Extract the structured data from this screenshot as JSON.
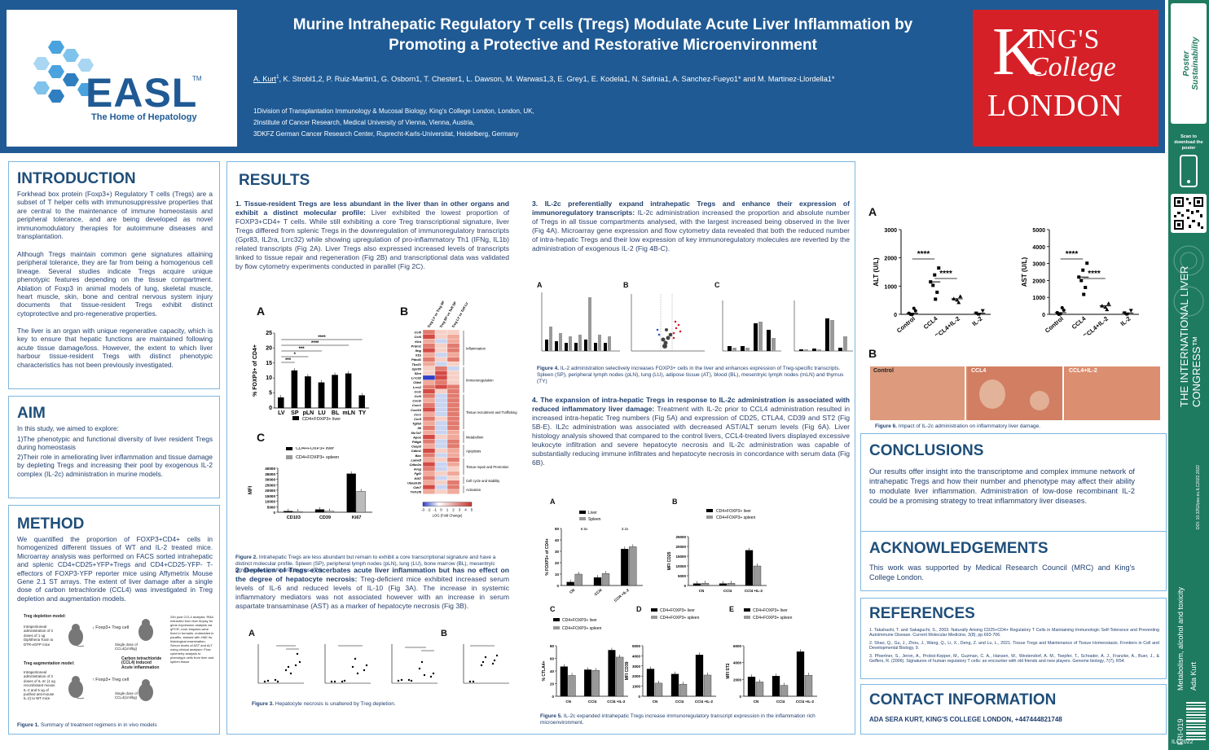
{
  "header": {
    "title_line1": "Murine Intrahepatic Regulatory T cells (Tregs) Modulate Acute Liver Inflammation by",
    "title_line2": "Promoting a Protective and Restorative Microenvironment",
    "authors_first": "A. Kurt",
    "authors_first_sup": "1",
    "authors_rest": ", K. Strobl1,2, P. Ruiz-Martin1, G. Osborn1, T. Chester1, L. Dawson, M. Warwas1,3, E. Grey1, E. Kodela1, N. Safinia1, A. Sanchez-Fueyo1* and M. Martinez-Llordella1*",
    "affiliations": [
      "1Division of Transplantation Immunology & Mucosal Biology, King's College London, London, UK,",
      "2Institute of Cancer Research, Medical University of Vienna, Vienna, Austria,",
      "3DKFZ German Cancer Research Center, Ruprecht-Karls-Universitat, Heidelberg, Germany"
    ],
    "easl_logo": "EASL",
    "easl_tm": "TM",
    "easl_tagline": "The Home of Hepatology",
    "kcl_k": "K",
    "kcl_ings": "ING'S",
    "kcl_college": "College",
    "kcl_london": "LONDON"
  },
  "sidebar": {
    "scan_text": "Scan to download the poster",
    "congress": "THE INTERNATIONAL LIVER CONGRESS™",
    "doi": "DOI: 10.3252/pso.eu.ILC2022.2022",
    "topic": "Metabolism, alcohol and toxicity",
    "author": "Ada Kurt",
    "code": "FRI-019",
    "year": "ILC2022"
  },
  "intro": {
    "heading": "INTRODUCTION",
    "p1": "Forkhead box protein (Foxp3+) Regulatory T cells (Tregs) are a subset of T helper cells with immunosuppressive properties that are central to the maintenance of immune homeostasis and peripheral tolerance, and are being developed as novel immunomodulatory therapies for autoimmune diseases and transplantation.",
    "p2": "Although Tregs maintain common gene signatures attaining peripheral tolerance, they are far from being a homogenous cell lineage. Several studies indicate Tregs acquire unique phenotypic features depending on the tissue compartment. Ablation of Foxp3 in animal models of lung, skeletal muscle, heart muscle, skin, bone and central nervous system injury documents that tissue-resident Tregs exhibit distinct cytoprotective and pro-regenerative properties.",
    "p3": "The liver is an organ with unique regenerative capacity, which is key to ensure that hepatic functions are maintained following acute tissue damage/loss. However, the extent to which liver harbour tissue-resident Tregs with distinct phenotypic characteristics has not been previously investigated."
  },
  "aim": {
    "heading": "AIM",
    "p1": "In this study, we aimed to explore:",
    "p2": "1)The phenotypic and functional diversity of liver resident Tregs during homeostasis",
    "p3": "2)Their role in ameliorating liver inflammation and tissue damage by depleting Tregs and increasing their pool by exogenous IL-2 complex (IL-2c) administration in murine models."
  },
  "method": {
    "heading": "METHOD",
    "p1": "We quantified the proportion of FOXP3+CD4+ cells in homogenized different tissues of WT and IL-2 treated mice. Microarray analysis was performed on FACS sorted intrahepatic and splenic CD4+CD25+YFP+Tregs and CD4+CD25-YFP- T-effectors of FOXP3-YFP reporter mice using Affymetrix Mouse Gene 2.1 ST arrays. The extent of liver damage after a single dose of carbon tetrachloride (CCL4) was investigated in Treg depletion and augmentation models.",
    "fig_depletion": "Treg depletion model:",
    "fig_augment": "Treg augmentation model:",
    "fig_dep_treat": "Intraperitoneal administration of 3 doses of 1 ug Diphtheria Toxin to DTR-eGFP mice",
    "fig_aug_treat": "Intraperitoneal administration of 3 doses of IL-2c (1 ug recombinant mouse IL-2 and 5 ug of purified anti-mouse IL-2) to WT mice",
    "fig_down": "↓ Foxp3+ Treg cell",
    "fig_up": "↑ Foxp3+ Treg cell",
    "fig_single": "Single dose of CCL4(1ml/kg)",
    "fig_ccl4": "Carbon tetrachloride (CCL4) induced Acute inflammation",
    "fig_24h": "24h post CCL4 analysis: RNA extracted from liver biopsy for gene expression analysis via qPCR; Liver biopsies were fixed in formalin, embedded in paraffin, stained with H&E for histological examination; Serum levels of AST and ALT using clinical analyser; Flow cytometry analysis to phenotype cells from liver and spleen tissue",
    "caption_bold": "Figure 1.",
    "caption": " Summary of treatment regimens in in vivo models"
  },
  "results": {
    "heading": "RESULTS",
    "s1_bold": "1. Tissue-resident Tregs are less abundant in the liver than in other organs and exhibit a distinct molecular profile:",
    "s1_text": " Liver exhibited the lowest proportion of FOXP3+CD4+ T cells. While still exhibiting a core Treg transcriptional signature, liver Tregs differed from splenic Tregs in the downregulation of immunoregulatory transcripts (Gpr83, IL2ra, Lrrc32) while showing upregulation of pro-inflammatory Th1 (IFNg, IL1b) related transcripts (Fig 2A). Liver Tregs also expressed increased levels of transcripts linked to tissue repair and regeneration (Fig 2B) and transcriptional data was validated by flow cytometry experiments conducted in parallel (Fig 2C).",
    "fig2_caption_bold": "Figure 2.",
    "fig2_caption": " Intrahepatic Tregs are less abundant but remain to exhibit a core transcriptional signature and have a distinct molecular profile. Spleen (SP), peripheral lymph nodes (pLN), lung (LU), bone marrow (BL), mesentryic lymph nodes (mLN) and thymus (TY)",
    "s2_bold": "2. Depletion of Tregs exacerbates acute liver inflammation but has no effect on the degree of hepatocyte necrosis:",
    "s2_text": " Treg-deficient mice exhibited increased serum levels of IL-6 and reduced levels of IL-10 (Fig 3A). The increase in systemic inflammatory mediators was not associated however with an increase in serum aspartate transaminase (AST) as a marker of hepatocyte necrosis (Fig 3B).",
    "fig3_caption_bold": "Figure 3.",
    "fig3_caption": " Hepatocyte necrosis is unaltered by Treg depletion.",
    "s3_bold": "3. IL-2c preferentially expand intrahepatic Tregs and enhance their expression of immunoregulatory transcripts:",
    "s3_text": " IL-2c administration increased the proportion and absolute number of Tregs in all tissue compartments analysed, with the largest increased being observed in the liver (Fig 4A). Microarray gene expression and flow cytometry data revealed that both the reduced number of intra-hepatic Tregs and their low expression of key immunoregulatory molecules are reverted by the administration of exogenous IL-2 (Fig 4B-C).",
    "fig4_caption_bold": "Figure 4.",
    "fig4_caption": " IL-2 administration selectively increases FOXP3+ cells in the liver and enhances expression of Treg-specific transcripts. Spleen (SP), peripheral lymph nodes (pLN), lung (LU), adipose tissue (AT), blood (BL), mesentryic lymph nodes (mLN) and thymus (TY)",
    "s4_bold": "4. The expansion of intra-hepatic Tregs in response to IL-2c administration is associated with reduced inflammatory liver damage:",
    "s4_text": " Treatment with IL-2c prior to CCL4 administration resulted in increased intra-hepatic Treg numbers (Fig 5A) and expression of CD25, CTLA4, CD39 and ST2 (Fig 5B-E). IL2c administration was associated with decreased AST/ALT serum levels (Fig 6A). Liver histology analysis showed that compared to the control livers, CCL4-treated livers displayed excessive leukocyte infiltration and severe hepatocyte necrosis and IL-2c administration was capable of substantially reducing immune infiltrates and hepatocyte necrosis in concordance with serum data (Fig 6B).",
    "fig5_caption_bold": "Figure 5.",
    "fig5_caption": " IL-2c expanded intrahepatic Tregs increase immunoregulatory transcript expression in the inflammation rich microenvironment.",
    "fig6_caption_bold": "Figure 6.",
    "fig6_caption": " Impact of IL-2c administration on inflammatory liver damage."
  },
  "conclusions": {
    "heading": "CONCLUSIONS",
    "text": "Our results offer insight into the transcriptome and complex immune network of intrahepatic Tregs and how their number and phenotype may affect their ability to modulate liver inflammation. Administration of low-dose recombinant IL-2 could be a promising strategy to treat inflammatory liver diseases."
  },
  "ack": {
    "heading": "ACKNOWLEDGEMENTS",
    "text": "This work was supported by Medical Research Council (MRC) and King's College London."
  },
  "refs": {
    "heading": "REFERENCES",
    "items": [
      "1. Takahashi, T. and Sakaguchi, S., 2003. Naturally Arising CD25+CD4+ Regulatory T Cells in Maintaining Immunologic Self-Tolerance and Preventing Autoimmune Disease. Current Molecular Medicine, 3(8), pp.693-706.",
      "2. Shao, Q., Gu, J., Zhou, J., Wang, Q., Li, X., Deng, Z. and Lu, L., 2021. Tissue Tregs and Maintenance of Tissue Homeostasis. Frontiers in Cell and Developmental Biology, 9.",
      "3. Pfoertner, S., Jeron, A., Probst-Kepper, M., Guzman, C. A., Hansen, W., Westendorf, A. M., Toepfer, T., Schrader, A. J., Franzke, A., Buer, J., & Geffers, R. (2006). Signatures of human regulatory T cells: an encounter with old friends and new players. Genome biology, 7(7), R54."
    ]
  },
  "contact": {
    "heading": "CONTACT INFORMATION",
    "text": "ADA SERA KURT, KING'S COLLEGE LONDON, +447444821748"
  },
  "panel_letters": {
    "a": "A",
    "b": "B",
    "c": "C",
    "d": "D",
    "e": "E"
  },
  "chart_data": [
    {
      "id": "fig2A",
      "type": "bar",
      "ylabel": "% FOXP3+ of CD4+",
      "categories": [
        "LV",
        "SP",
        "pLN",
        "LU",
        "BL",
        "mLN",
        "TY"
      ],
      "values": [
        3.5,
        12.5,
        10.5,
        8.5,
        11,
        11.5,
        4.2
      ],
      "ylim": [
        0,
        25
      ],
      "yticks": [
        0,
        5,
        10,
        15,
        20,
        25
      ],
      "sig": [
        "***",
        "*",
        "***",
        "****",
        "****"
      ]
    },
    {
      "id": "fig2C",
      "type": "bar",
      "ylabel": "MFI",
      "categories": [
        "CD103",
        "CD39",
        "Ki67"
      ],
      "series": [
        {
          "name": "CD4+FOXP3+ liver",
          "values": [
            1000,
            2500,
            35000
          ]
        },
        {
          "name": "CD4+FOXP3+ spleen",
          "values": [
            700,
            1100,
            19000
          ]
        }
      ],
      "ylim": [
        0,
        40000
      ],
      "yticks": [
        0,
        1000,
        2000,
        3000,
        4000,
        5000,
        10000,
        15000,
        20000,
        25000,
        30000,
        35000,
        40000
      ]
    },
    {
      "id": "fig2B",
      "type": "heatmap",
      "rows": [
        "Ccl5",
        "Ccl4",
        "Klra",
        "Prdm1",
        "Ifng",
        "Il1b",
        "Pdcd1",
        "Tbx21",
        "Gpr83",
        "Il2ra",
        "Lrrc32",
        "Ctla4",
        "Lrrc2",
        "Ccl1",
        "Ccl3",
        "Cxcl2",
        "Cxcr1",
        "Cxcl10",
        "Ccr1",
        "Ccr5",
        "Tgfb3",
        "Il6",
        "Slc7a7",
        "Apoe",
        "Pdlgb",
        "Casp3",
        "Cdkn1",
        "Bax",
        "Lama5",
        "Cdkn2a",
        "Areg",
        "Fgf2",
        "Ki67",
        "Ubash3b",
        "Cdc7",
        "Tnfrsf9"
      ],
      "colors_hex": [
        "#d44a44",
        "#e27b6f",
        "#f1a99a",
        "#2f3fc9",
        "#c9d4f0",
        "#f6d0c6"
      ],
      "cols": [
        "Treg LV vs Treg SP",
        "Treg SP vs Teff SP",
        "Treg LV vs Teff LV"
      ],
      "groups": [
        "Inflammation",
        "Immunoregulation",
        "Tissue recruitment and Trafficking",
        "Metabolism",
        "Apoptosis",
        "Tissue repair and Promotion",
        "Cell cycle and stability",
        "Activation"
      ],
      "scale_ticks": [
        "-3",
        "-2",
        "-1",
        "0",
        "1",
        "2",
        "3",
        "4",
        "5"
      ],
      "scale_label": "LOG (Fold Change)"
    },
    {
      "id": "fig6A_ALT",
      "type": "scatter",
      "ylabel": "ALT (U/L)",
      "categories": [
        "Control",
        "CCL4",
        "CCL4+IL-2",
        "IL-2"
      ],
      "values": [
        40,
        1150,
        550,
        40
      ],
      "ylim": [
        0,
        3000
      ],
      "yticks": [
        0,
        1000,
        2000,
        3000
      ],
      "sig": [
        "****",
        "****"
      ]
    },
    {
      "id": "fig6A_AST",
      "type": "scatter",
      "ylabel": "AST (U/L)",
      "categories": [
        "Control",
        "CCL4",
        "CCL4+IL-2",
        "IL-2"
      ],
      "values": [
        100,
        2200,
        500,
        80
      ],
      "ylim": [
        0,
        5000
      ],
      "yticks": [
        0,
        1000,
        2000,
        3000,
        4000,
        5000
      ],
      "sig": [
        "****",
        "****"
      ]
    },
    {
      "id": "fig5A",
      "type": "bar",
      "ylabel": "% FOXP3+ of CD4+",
      "categories": [
        "CN",
        "CCl4",
        "CCl4 +IL-2"
      ],
      "series": [
        {
          "name": "Liver",
          "values": [
            3,
            7,
            32
          ]
        },
        {
          "name": "Spleen",
          "values": [
            10,
            10.5,
            34
          ]
        }
      ],
      "ylim": [
        0,
        50
      ],
      "yticks": [
        0,
        10,
        20,
        30,
        40,
        50
      ],
      "annotations": [
        "6.5x",
        "3.2x"
      ]
    },
    {
      "id": "fig5B",
      "type": "bar",
      "ylabel": "MFI CD25",
      "categories": [
        "CN",
        "CCl4",
        "CCl4 +IL-2"
      ],
      "series": [
        {
          "name": "CD4+FOXP3+ liver",
          "values": [
            1000,
            1000,
            18000
          ]
        },
        {
          "name": "CD4+FOXP3+ spleen",
          "values": [
            1200,
            1200,
            10000
          ]
        }
      ],
      "ylim": [
        0,
        25000
      ],
      "yticks": [
        0,
        5000,
        10000,
        15000,
        20000,
        25000
      ]
    },
    {
      "id": "fig5C",
      "type": "bar",
      "ylabel": "% CTLA4+",
      "categories": [
        "CN",
        "CCl4",
        "CCl4 +IL-2"
      ],
      "series": [
        {
          "name": "CD4+FOXP3+ liver",
          "values": [
            47,
            42,
            73
          ]
        },
        {
          "name": "CD4+FOXP3+ spleen",
          "values": [
            33,
            41,
            62
          ]
        }
      ],
      "ylim": [
        0,
        80
      ],
      "yticks": [
        0,
        20,
        40,
        60,
        80
      ]
    },
    {
      "id": "fig5D",
      "type": "bar",
      "ylabel": "MFI CD39",
      "categories": [
        "CN",
        "CCl4",
        "CCl4 +IL-2"
      ],
      "series": [
        {
          "name": "CD4+FOXP3+ liver",
          "values": [
            2700,
            2200,
            4100
          ]
        },
        {
          "name": "CD4+FOXP3+ spleen",
          "values": [
            1300,
            1200,
            2100
          ]
        }
      ],
      "ylim": [
        0,
        5000
      ],
      "yticks": [
        0,
        1000,
        2000,
        3000,
        4000,
        5000
      ]
    },
    {
      "id": "fig5E",
      "type": "bar",
      "ylabel": "MFI ST2",
      "categories": [
        "CN",
        "CCl4",
        "CCl4 +IL-2"
      ],
      "series": [
        {
          "name": "CD4+FOXP3+ liver",
          "values": [
            2300,
            2400,
            5300
          ]
        },
        {
          "name": "CD4+FOXP3+ spleen",
          "values": [
            1700,
            1300,
            2500
          ]
        }
      ],
      "ylim": [
        0,
        6000
      ],
      "yticks": [
        0,
        2000,
        4000,
        6000
      ]
    }
  ]
}
